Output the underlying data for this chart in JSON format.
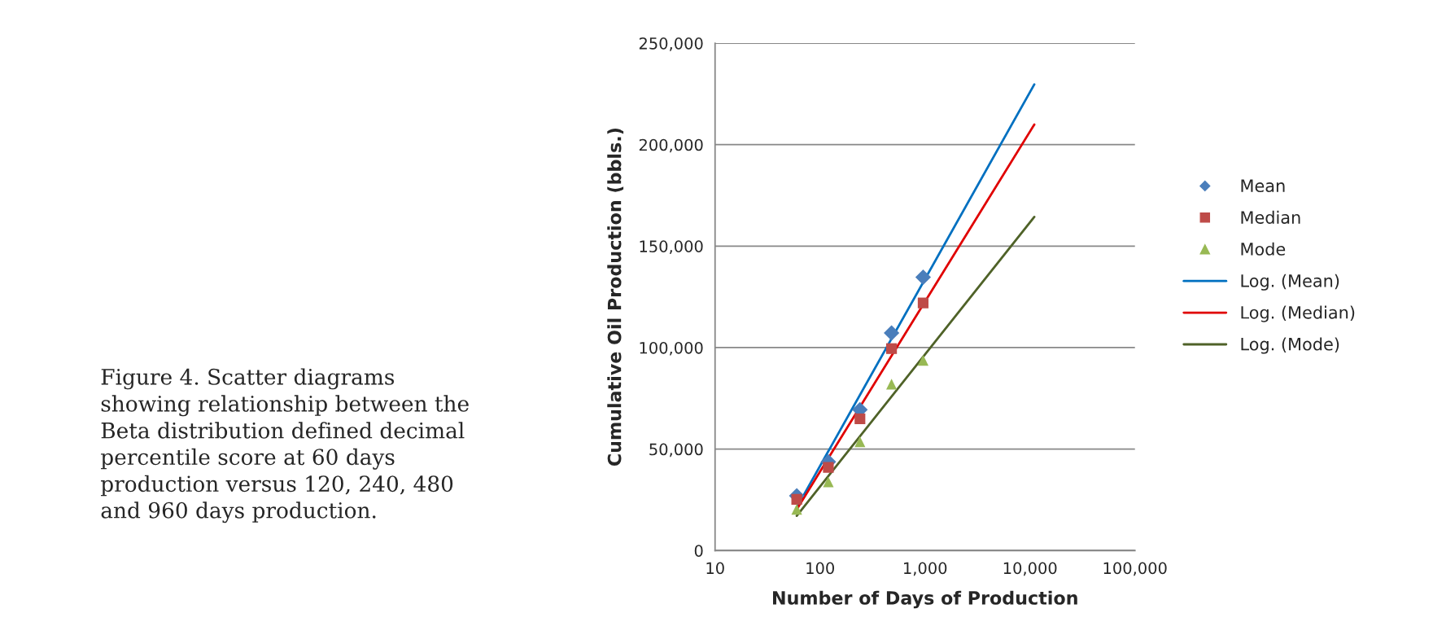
{
  "chart_data": {
    "type": "scatter",
    "xlabel": "Number of Days of Production",
    "ylabel": "Cumulative Oil Production (bbls.)",
    "log": "x",
    "xlim": [
      10,
      100000
    ],
    "ylim": [
      0,
      250000
    ],
    "xticks": [
      {
        "value": 10,
        "label": "10"
      },
      {
        "value": 100,
        "label": "100"
      },
      {
        "value": 1000,
        "label": "1,000"
      },
      {
        "value": 10000,
        "label": "10,000"
      },
      {
        "value": 100000,
        "label": "100,000"
      }
    ],
    "yticks": [
      {
        "value": 0,
        "label": "0"
      },
      {
        "value": 50000,
        "label": "50,000"
      },
      {
        "value": 100000,
        "label": "100,000"
      },
      {
        "value": 150000,
        "label": "150,000"
      },
      {
        "value": 200000,
        "label": "200,000"
      },
      {
        "value": 250000,
        "label": "250,000"
      }
    ],
    "grid": "y",
    "legend": "right",
    "series": [
      {
        "name": "Mean",
        "marker": "diamond",
        "color": "#4a7ebb",
        "x": [
          60,
          120,
          240,
          480,
          960
        ],
        "values": [
          27000,
          43700,
          69400,
          107200,
          134700
        ]
      },
      {
        "name": "Median",
        "marker": "square",
        "color": "#be4b48",
        "x": [
          60,
          120,
          240,
          480,
          960
        ],
        "values": [
          25200,
          41000,
          64900,
          99500,
          122000
        ]
      },
      {
        "name": "Mode",
        "marker": "triangle",
        "color": "#98b954",
        "x": [
          60,
          120,
          240,
          480,
          960
        ],
        "values": [
          20300,
          33800,
          53600,
          82000,
          93700
        ]
      },
      {
        "name": "Log. (Mean)",
        "type": "line",
        "color": "#0070c0",
        "x": [
          60,
          11000
        ],
        "values": [
          21200,
          229700
        ]
      },
      {
        "name": "Log. (Median)",
        "type": "line",
        "color": "#e00000",
        "x": [
          60,
          11000
        ],
        "values": [
          20300,
          209900
        ]
      },
      {
        "name": "Log. (Mode)",
        "type": "line",
        "color": "#4f6228",
        "x": [
          60,
          11000
        ],
        "values": [
          17100,
          164400
        ]
      }
    ],
    "annotations": [
      "Figure 4. Scatter diagrams showing relationship between the Beta distribution defined decimal percentile score at 60 days production versus 120, 240, 480 and 960 days production."
    ]
  }
}
